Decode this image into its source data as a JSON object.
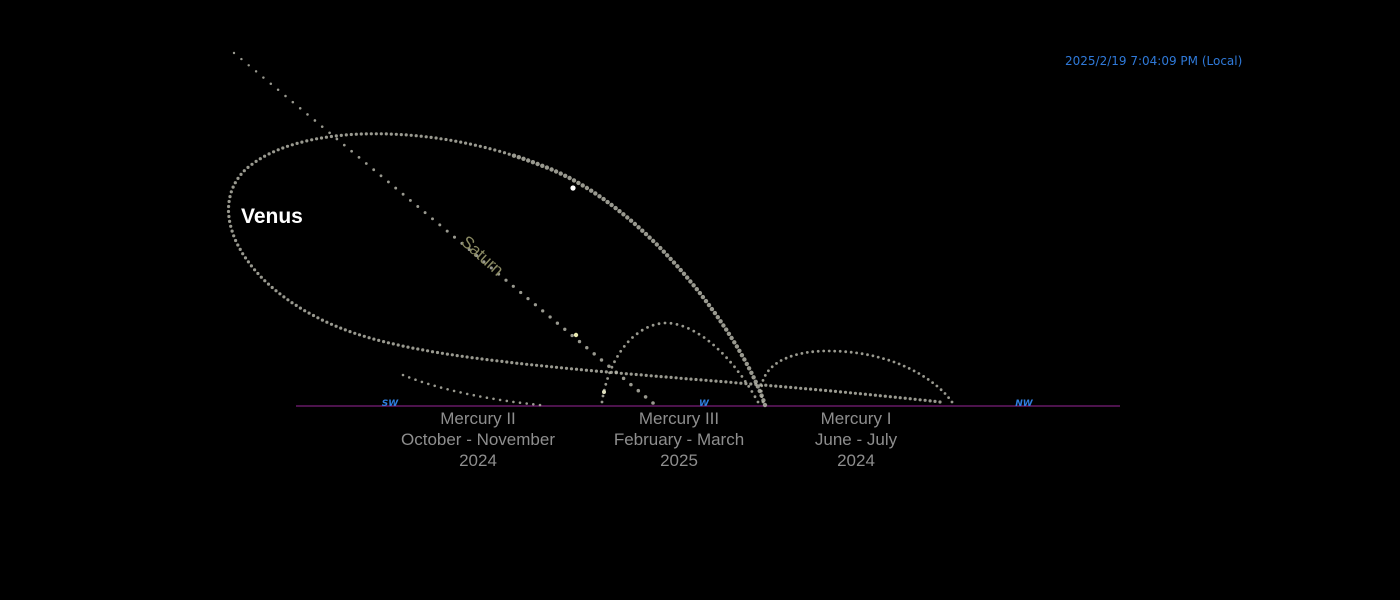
{
  "timestamp": "2025/2/19 7:04:09 PM (Local)",
  "compass": {
    "sw": "SW",
    "w": "W",
    "nw": "NW"
  },
  "labels": {
    "venus": "Venus",
    "saturn": "Saturn"
  },
  "captions": [
    {
      "name": "Mercury II",
      "period": "October - November",
      "year": "2024"
    },
    {
      "name": "Mercury III",
      "period": "February - March",
      "year": "2025"
    },
    {
      "name": "Mercury I",
      "period": "June - July",
      "year": "2024"
    }
  ],
  "colors": {
    "background": "#000000",
    "horizon": "#7a1f7a",
    "track_dots": "#b4b4a8",
    "saturn_text": "#8a8a63",
    "compass": "#2f7fe0",
    "timestamp": "#2f79d8"
  }
}
